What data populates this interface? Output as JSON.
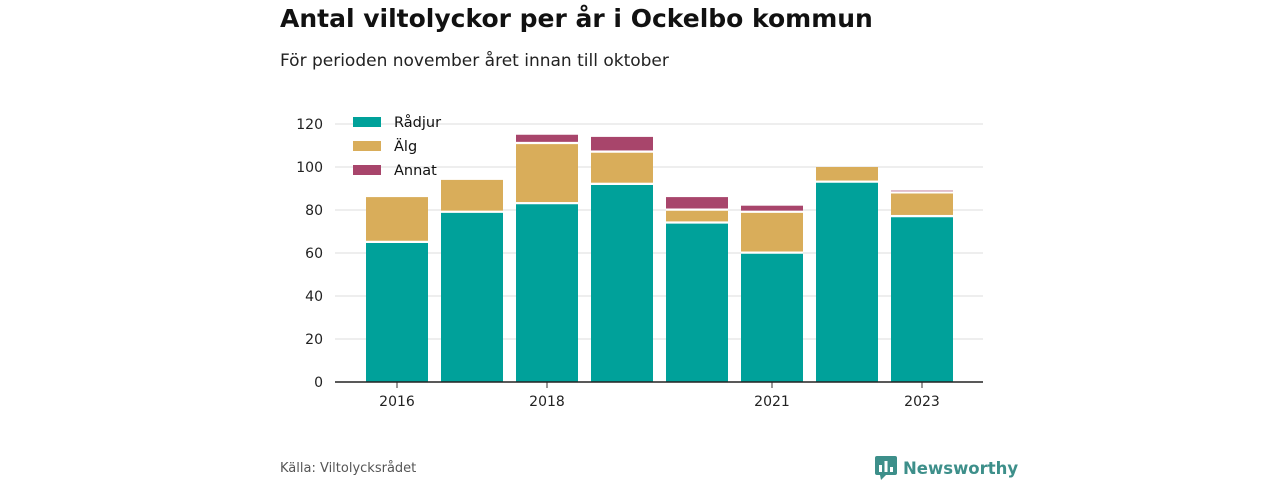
{
  "header": {
    "title": "Antal viltolyckor per år i Ockelbo kommun",
    "subtitle": "För perioden november året innan till oktober"
  },
  "footer": {
    "source": "Källa: Viltolycksrådet",
    "brand": "Newsworthy",
    "brand_icon": "chart-logo-icon"
  },
  "colors": {
    "radjur": "#00a19a",
    "alg": "#d9ad5a",
    "annat": "#a8456b",
    "brand": "#3d8f8a"
  },
  "chart_data": {
    "type": "bar",
    "stacked": true,
    "title": "Antal viltolyckor per år i Ockelbo kommun",
    "subtitle": "För perioden november året innan till oktober",
    "categories": [
      "2016",
      "2017",
      "2018",
      "2019",
      "2020",
      "2021",
      "2022",
      "2023"
    ],
    "x_tick_labels": [
      "2016",
      "",
      "2018",
      "",
      "",
      "2021",
      "",
      "2023"
    ],
    "series": [
      {
        "name": "Rådjur",
        "color": "#00a19a",
        "values": [
          65,
          79,
          83,
          92,
          74,
          60,
          93,
          77
        ]
      },
      {
        "name": "Älg",
        "color": "#d9ad5a",
        "values": [
          21,
          15,
          28,
          15,
          6,
          19,
          7,
          11
        ]
      },
      {
        "name": "Annat",
        "color": "#a8456b",
        "values": [
          0,
          0,
          4,
          7,
          6,
          3,
          0,
          1
        ]
      }
    ],
    "ylim": [
      0,
      120
    ],
    "yticks": [
      0,
      20,
      40,
      60,
      80,
      100,
      120
    ],
    "grid": true,
    "legend": "top-left"
  }
}
